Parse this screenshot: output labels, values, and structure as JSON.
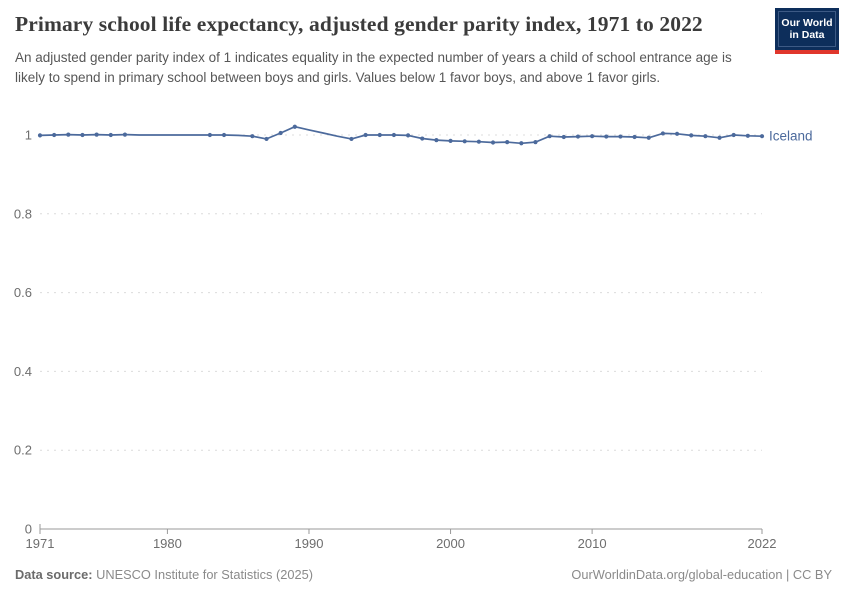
{
  "header": {
    "title": "Primary school life expectancy, adjusted gender parity index, 1971 to 2022",
    "subtitle": "An adjusted gender parity index of 1 indicates equality in the expected number of years a child of school entrance age is likely to spend in primary school between boys and girls. Values below 1 favor boys, and above 1 favor girls.",
    "logo": {
      "line1": "Our World",
      "line2": "in Data",
      "bg_color": "#0d2e5b",
      "stripe_color": "#e0362c"
    }
  },
  "footer": {
    "source_label": "Data source:",
    "source_value": " UNESCO Institute for Statistics (2025)",
    "credit": "OurWorldinData.org/global-education | CC BY"
  },
  "chart_data": {
    "type": "line",
    "title": "Primary school life expectancy, adjusted gender parity index",
    "entity_label": "Iceland",
    "line_color": "#4C6A9C",
    "grid": "dashed",
    "legend_position": "end-of-line",
    "ylim": [
      0,
      1.04
    ],
    "yticks": [
      0,
      0.2,
      0.4,
      0.6,
      0.8,
      1
    ],
    "xticks": [
      1971,
      1980,
      1990,
      2000,
      2010,
      2022
    ],
    "x": [
      1971,
      1972,
      1973,
      1974,
      1975,
      1976,
      1977,
      1978,
      1979,
      1980,
      1981,
      1982,
      1983,
      1984,
      1985,
      1986,
      1987,
      1988,
      1989,
      1990,
      1991,
      1992,
      1993,
      1994,
      1995,
      1996,
      1997,
      1998,
      1999,
      2000,
      2001,
      2002,
      2003,
      2004,
      2005,
      2006,
      2007,
      2008,
      2009,
      2010,
      2011,
      2012,
      2013,
      2014,
      2015,
      2016,
      2017,
      2018,
      2019,
      2020,
      2021,
      2022
    ],
    "series": [
      {
        "name": "Iceland",
        "values": [
          0.999,
          1.0,
          1.001,
          1.0,
          1.001,
          1.0,
          1.001,
          1.0,
          1.0,
          1.0,
          1.0,
          1.0,
          1.0,
          1.0,
          0.999,
          0.997,
          0.99,
          1.005,
          1.021,
          1.013,
          1.005,
          0.997,
          0.99,
          1.0,
          1.0,
          1.0,
          0.999,
          0.991,
          0.987,
          0.985,
          0.984,
          0.983,
          0.981,
          0.982,
          0.979,
          0.982,
          0.997,
          0.995,
          0.996,
          0.997,
          0.996,
          0.996,
          0.995,
          0.993,
          1.004,
          1.003,
          0.999,
          0.997,
          0.993,
          1.0,
          0.998,
          0.997
        ]
      }
    ],
    "no_marker_years": [
      1978,
      1979,
      1980,
      1981,
      1982,
      1985,
      1990,
      1991,
      1992
    ]
  }
}
